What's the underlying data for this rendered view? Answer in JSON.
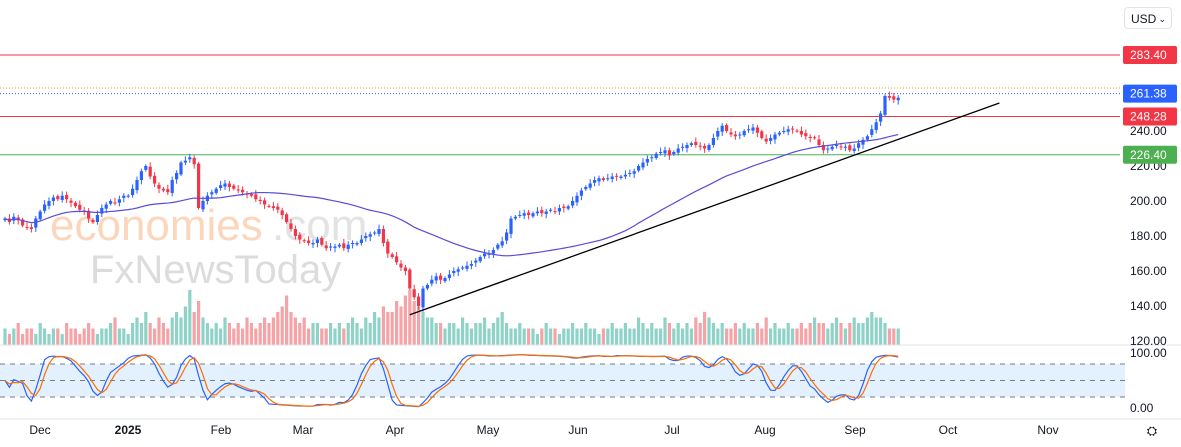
{
  "currency": {
    "label": "USD"
  },
  "watermark": {
    "line1": "economies.com",
    "line2": "FxNewsToday"
  },
  "colors": {
    "up": "#2962ff",
    "down": "#f23645",
    "ma": "#5b4bd8",
    "resistance": "#f23645",
    "support": "#4caf50",
    "last": "#2962ff",
    "stoch_k": "#2962ff",
    "stoch_d": "#ff6d00"
  },
  "chart_data": {
    "type": "candlestick",
    "price_axis": {
      "ticks": [
        "240.00",
        "220.00",
        "200.00",
        "180.00",
        "160.00",
        "140.00",
        "120.00"
      ],
      "tick_values": [
        240,
        220,
        200,
        180,
        160,
        140,
        120
      ]
    },
    "time_axis": {
      "labels": [
        "Dec",
        "2025",
        "Feb",
        "Mar",
        "Apr",
        "May",
        "Jun",
        "Jul",
        "Aug",
        "Sep",
        "Oct",
        "Nov"
      ]
    },
    "levels": [
      {
        "label": "283.40",
        "value": 283.4,
        "kind": "resistance"
      },
      {
        "label": "261.38",
        "value": 261.38,
        "kind": "last"
      },
      {
        "label": "248.28",
        "value": 248.28,
        "kind": "resistance"
      },
      {
        "label": "226.40",
        "value": 226.4,
        "kind": "support"
      }
    ],
    "trendline": {
      "from": {
        "index": 92,
        "price": 135
      },
      "to": {
        "index": 226,
        "price": 256
      }
    },
    "ma_period": 50,
    "closes": [
      190,
      188,
      191,
      189,
      186,
      185,
      184,
      190,
      194,
      198,
      200,
      202,
      201,
      203,
      201,
      199,
      197,
      195,
      194,
      190,
      188,
      192,
      196,
      198,
      200,
      199,
      201,
      203,
      203,
      207,
      212,
      217,
      220,
      214,
      210,
      207,
      206,
      205,
      212,
      216,
      222,
      223,
      225,
      221,
      196,
      200,
      203,
      205,
      207,
      209,
      210,
      208,
      207,
      206,
      205,
      204,
      203,
      201,
      200,
      198,
      197,
      196,
      195,
      192,
      188,
      184,
      180,
      178,
      177,
      176,
      176,
      178,
      175,
      173,
      174,
      174,
      175,
      173,
      175,
      176,
      176,
      178,
      180,
      181,
      182,
      184,
      176,
      170,
      168,
      165,
      162,
      160,
      150,
      145,
      140,
      150,
      152,
      155,
      157,
      155,
      156,
      158,
      160,
      161,
      162,
      163,
      164,
      166,
      168,
      170,
      170,
      172,
      175,
      177,
      182,
      190,
      191,
      192,
      193,
      192,
      193,
      194,
      193,
      194,
      195,
      194,
      196,
      196,
      197,
      200,
      203,
      206,
      208,
      210,
      212,
      213,
      212,
      213,
      214,
      214,
      214,
      215,
      216,
      217,
      220,
      222,
      224,
      225,
      227,
      228,
      229,
      226,
      228,
      230,
      231,
      232,
      233,
      232,
      231,
      230,
      232,
      236,
      240,
      243,
      240,
      238,
      237,
      238,
      240,
      241,
      242,
      239,
      236,
      234,
      236,
      238,
      239,
      240,
      241,
      241,
      240,
      238,
      237,
      236,
      236,
      232,
      229,
      230,
      231,
      232,
      231,
      231,
      229,
      230,
      233,
      235,
      237,
      241,
      245,
      250,
      260,
      259,
      258,
      259
    ],
    "volume": [
      3,
      2,
      3,
      4,
      2,
      3,
      3,
      2,
      4,
      3,
      2,
      3,
      3,
      2,
      4,
      3,
      3,
      2,
      3,
      4,
      3,
      2,
      3,
      3,
      4,
      5,
      3,
      3,
      2,
      4,
      5,
      4,
      6,
      4,
      3,
      5,
      4,
      3,
      5,
      6,
      5,
      7,
      10,
      6,
      8,
      5,
      4,
      3,
      4,
      3,
      5,
      4,
      3,
      4,
      3,
      5,
      4,
      3,
      4,
      5,
      4,
      5,
      6,
      7,
      9,
      6,
      5,
      4,
      5,
      3,
      4,
      4,
      3,
      3,
      4,
      3,
      4,
      3,
      4,
      5,
      4,
      3,
      5,
      4,
      6,
      5,
      7,
      6,
      6,
      8,
      7,
      9,
      10,
      8,
      7,
      6,
      5,
      5,
      4,
      4,
      3,
      4,
      4,
      3,
      5,
      4,
      3,
      4,
      4,
      5,
      3,
      4,
      5,
      6,
      4,
      3,
      3,
      4,
      3,
      3,
      3,
      2,
      3,
      4,
      3,
      3,
      2,
      3,
      3,
      4,
      3,
      3,
      4,
      3,
      3,
      2,
      3,
      3,
      4,
      3,
      3,
      4,
      3,
      3,
      5,
      4,
      3,
      4,
      3,
      3,
      5,
      4,
      3,
      4,
      3,
      4,
      3,
      5,
      4,
      6,
      5,
      4,
      3,
      4,
      3,
      3,
      4,
      3,
      4,
      3,
      3,
      4,
      3,
      5,
      3,
      4,
      3,
      3,
      4,
      3,
      3,
      4,
      3,
      4,
      5,
      4,
      4,
      3,
      4,
      5,
      4,
      3,
      4,
      5,
      4,
      4,
      5,
      6,
      5,
      5,
      4,
      3,
      3,
      3
    ],
    "stochastic": {
      "k_period": 14,
      "smooth": 3,
      "d_period": 3,
      "axis_ticks": [
        "100.00",
        "0.00"
      ],
      "bands": [
        80,
        50,
        20
      ]
    }
  }
}
